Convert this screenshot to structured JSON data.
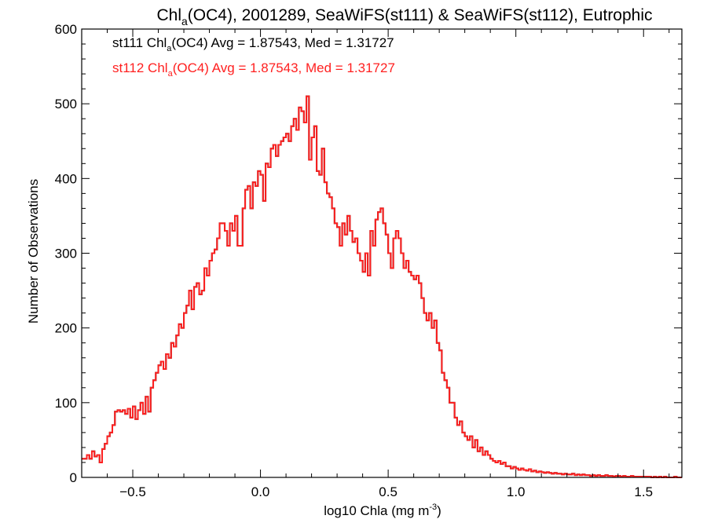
{
  "title": {
    "prefix": "Chl",
    "sub": "a",
    "rest": "(OC4), 2001289, SeaWiFS(st111) & SeaWiFS(st112), Eutrophic"
  },
  "xlabel": {
    "main": "log10 Chla (mg m",
    "sup": "-3",
    "end": ")"
  },
  "ylabel": "Number of Observations",
  "legend": [
    {
      "id": "st111",
      "color": "#000000",
      "prefix": "st111 Chl",
      "sub": "a",
      "rest": "(OC4) Avg = 1.87543, Med = 1.31727"
    },
    {
      "id": "st112",
      "color": "#ff2020",
      "prefix": "st112 Chl",
      "sub": "a",
      "rest": "(OC4) Avg = 1.87543, Med = 1.31727"
    }
  ],
  "colors": {
    "st111": "#000000",
    "st112": "#ff2020"
  },
  "chart_data": {
    "type": "histogram-step",
    "xlim": [
      -0.7,
      1.65
    ],
    "ylim": [
      0,
      600
    ],
    "xticks": [
      -0.5,
      0.0,
      0.5,
      1.0,
      1.5
    ],
    "xtick_labels": [
      "−0.5",
      "0.0",
      "0.5",
      "1.0",
      "1.5"
    ],
    "yticks": [
      0,
      100,
      200,
      300,
      400,
      500,
      600
    ],
    "ytick_labels": [
      "0",
      "100",
      "200",
      "300",
      "400",
      "500",
      "600"
    ],
    "bin_width": 0.01,
    "series": [
      {
        "name": "st111",
        "color": "#000000",
        "x": [
          -0.7,
          -0.69,
          -0.68,
          -0.67,
          -0.66,
          -0.65,
          -0.64,
          -0.63,
          -0.62,
          -0.61,
          -0.6,
          -0.59,
          -0.58,
          -0.57,
          -0.56,
          -0.55,
          -0.54,
          -0.53,
          -0.52,
          -0.51,
          -0.5,
          -0.49,
          -0.48,
          -0.47,
          -0.46,
          -0.45,
          -0.44,
          -0.43,
          -0.42,
          -0.41,
          -0.4,
          -0.39,
          -0.38,
          -0.37,
          -0.36,
          -0.35,
          -0.34,
          -0.33,
          -0.32,
          -0.31,
          -0.3,
          -0.29,
          -0.28,
          -0.27,
          -0.26,
          -0.25,
          -0.24,
          -0.23,
          -0.22,
          -0.21,
          -0.2,
          -0.19,
          -0.18,
          -0.17,
          -0.16,
          -0.15,
          -0.14,
          -0.13,
          -0.12,
          -0.11,
          -0.1,
          -0.09,
          -0.08,
          -0.07,
          -0.06,
          -0.05,
          -0.04,
          -0.03,
          -0.02,
          -0.01,
          0.0,
          0.01,
          0.02,
          0.03,
          0.04,
          0.05,
          0.06,
          0.07,
          0.08,
          0.09,
          0.1,
          0.11,
          0.12,
          0.13,
          0.14,
          0.15,
          0.16,
          0.17,
          0.18,
          0.19,
          0.2,
          0.21,
          0.22,
          0.23,
          0.24,
          0.25,
          0.26,
          0.27,
          0.28,
          0.29,
          0.3,
          0.31,
          0.32,
          0.33,
          0.34,
          0.35,
          0.36,
          0.37,
          0.38,
          0.39,
          0.4,
          0.41,
          0.42,
          0.43,
          0.44,
          0.45,
          0.46,
          0.47,
          0.48,
          0.49,
          0.5,
          0.51,
          0.52,
          0.53,
          0.54,
          0.55,
          0.56,
          0.57,
          0.58,
          0.59,
          0.6,
          0.61,
          0.62,
          0.63,
          0.64,
          0.65,
          0.66,
          0.67,
          0.68,
          0.69,
          0.7,
          0.71,
          0.72,
          0.73,
          0.74,
          0.75,
          0.76,
          0.77,
          0.78,
          0.79,
          0.8,
          0.81,
          0.82,
          0.83,
          0.84,
          0.85,
          0.86,
          0.87,
          0.88,
          0.89,
          0.9,
          0.91,
          0.92,
          0.93,
          0.94,
          0.95,
          0.96,
          0.97,
          0.98,
          0.99,
          1.0,
          1.01,
          1.02,
          1.03,
          1.04,
          1.05,
          1.06,
          1.07,
          1.08,
          1.09,
          1.1,
          1.11,
          1.12,
          1.13,
          1.14,
          1.15,
          1.16,
          1.17,
          1.18,
          1.19,
          1.2,
          1.21,
          1.22,
          1.23,
          1.24,
          1.25,
          1.26,
          1.27,
          1.28,
          1.29,
          1.3,
          1.31,
          1.32,
          1.33,
          1.34,
          1.35,
          1.36,
          1.37,
          1.38,
          1.39,
          1.4,
          1.41,
          1.42,
          1.43,
          1.44,
          1.45,
          1.46,
          1.47,
          1.48,
          1.49,
          1.5,
          1.51,
          1.52,
          1.53,
          1.54,
          1.55,
          1.56,
          1.57,
          1.58,
          1.59,
          1.6,
          1.61,
          1.62,
          1.63,
          1.64
        ],
        "y": [
          25,
          25,
          30,
          25,
          35,
          28,
          30,
          20,
          38,
          45,
          55,
          60,
          70,
          88,
          90,
          88,
          90,
          85,
          92,
          80,
          95,
          78,
          90,
          100,
          85,
          108,
          88,
          120,
          130,
          140,
          150,
          155,
          145,
          165,
          160,
          180,
          175,
          190,
          205,
          200,
          220,
          230,
          250,
          225,
          255,
          260,
          245,
          250,
          280,
          270,
          290,
          300,
          305,
          320,
          340,
          340,
          330,
          310,
          340,
          330,
          350,
          310,
          310,
          360,
          385,
          390,
          360,
          395,
          390,
          410,
          405,
          370,
          420,
          415,
          440,
          445,
          430,
          445,
          450,
          455,
          460,
          450,
          470,
          480,
          465,
          495,
          490,
          475,
          510,
          425,
          455,
          470,
          410,
          405,
          440,
          395,
          380,
          375,
          360,
          340,
          335,
          310,
          340,
          325,
          350,
          330,
          315,
          320,
          300,
          290,
          275,
          300,
          270,
          330,
          310,
          345,
          355,
          360,
          340,
          325,
          300,
          280,
          320,
          330,
          320,
          300,
          280,
          290,
          275,
          270,
          265,
          270,
          260,
          240,
          220,
          210,
          220,
          200,
          210,
          180,
          170,
          140,
          130,
          120,
          100,
          100,
          80,
          70,
          75,
          60,
          55,
          50,
          55,
          40,
          50,
          35,
          40,
          30,
          35,
          30,
          25,
          22,
          20,
          22,
          18,
          20,
          15,
          15,
          12,
          14,
          12,
          10,
          12,
          10,
          9,
          11,
          8,
          9,
          7,
          8,
          7,
          6,
          7,
          6,
          5,
          6,
          5,
          5,
          4,
          5,
          4,
          4,
          5,
          3,
          4,
          3,
          4,
          3,
          3,
          2,
          3,
          2,
          3,
          2,
          2,
          3,
          2,
          2,
          1,
          2,
          2,
          1,
          2,
          1,
          1,
          2,
          1,
          1,
          1,
          1,
          1,
          1,
          1,
          0,
          1,
          0,
          1,
          0,
          1,
          0,
          0,
          0,
          1,
          0,
          0
        ]
      },
      {
        "name": "st112",
        "color": "#ff2020",
        "same_as": "st111"
      }
    ]
  }
}
